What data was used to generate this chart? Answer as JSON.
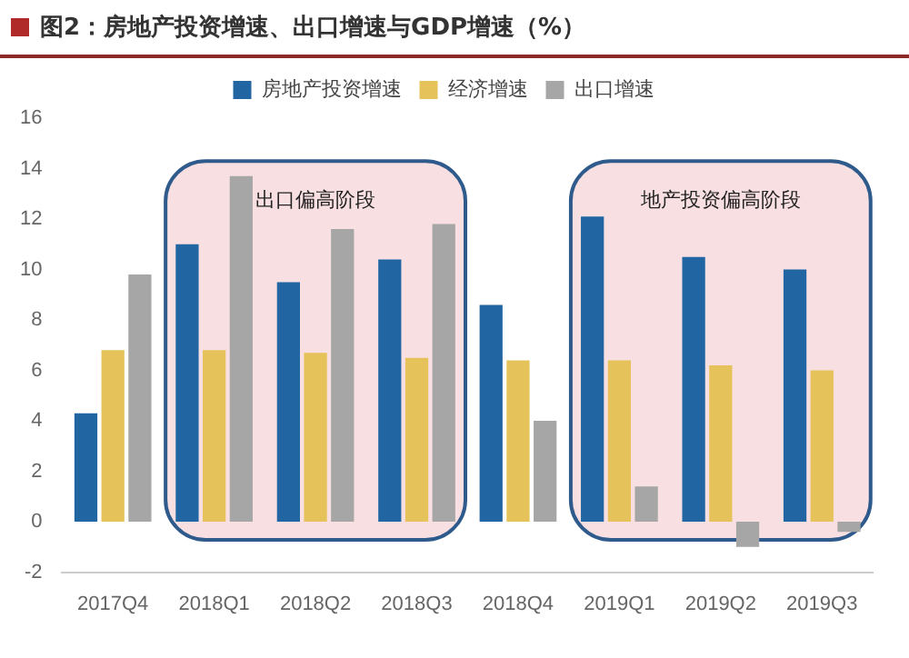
{
  "chart_data": {
    "type": "bar",
    "title": "图2：房地产投资增速、出口增速与GDP增速（%）",
    "categories": [
      "2017Q4",
      "2018Q1",
      "2018Q2",
      "2018Q3",
      "2018Q4",
      "2019Q1",
      "2019Q2",
      "2019Q3"
    ],
    "series": [
      {
        "name": "房地产投资增速",
        "color": "#2166a3",
        "values": [
          4.3,
          11.0,
          9.5,
          10.4,
          8.6,
          12.1,
          10.5,
          10.0
        ]
      },
      {
        "name": "经济增速",
        "color": "#e6c35a",
        "values": [
          6.8,
          6.8,
          6.7,
          6.5,
          6.4,
          6.4,
          6.2,
          6.0
        ]
      },
      {
        "name": "出口增速",
        "color": "#a6a6a6",
        "values": [
          9.8,
          13.7,
          11.6,
          11.8,
          4.0,
          1.4,
          -1.0,
          -0.4
        ]
      }
    ],
    "ylim": [
      -2,
      16
    ],
    "yticks": [
      -2,
      0,
      2,
      4,
      6,
      8,
      10,
      12,
      14,
      16
    ],
    "grid": false,
    "legend": "top",
    "bands": [
      {
        "axis": "x",
        "from": "2018Q1",
        "to": "2018Q3",
        "label": "出口偏高阶段",
        "color": "#f8dfe2"
      },
      {
        "axis": "x",
        "from": "2019Q1",
        "to": "2019Q3",
        "label": "地产投资偏高阶段",
        "color": "#f8dfe2"
      }
    ]
  }
}
